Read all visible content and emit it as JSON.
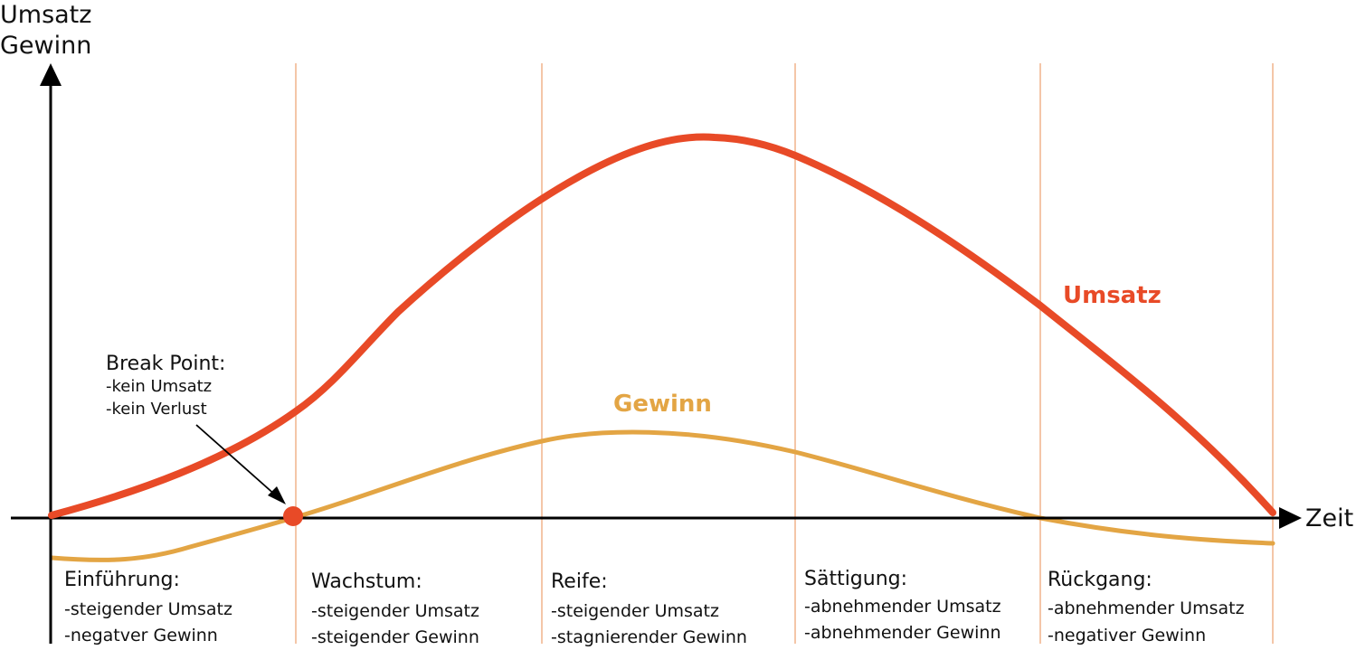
{
  "colors": {
    "umsatz": "#e84a27",
    "gewinn": "#e3a544",
    "divider": "#f0b48c",
    "axis": "#000000",
    "break_point": "#e84a27"
  },
  "y_axis_title": [
    "Umsatz",
    "Gewinn"
  ],
  "x_axis_title": "Zeit",
  "break_point": {
    "title": "Break Point:",
    "lines": [
      "-kein Umsatz",
      "-kein Verlust"
    ]
  },
  "phases": [
    {
      "title": "Einführung:",
      "lines": [
        "-steigender Umsatz",
        "-negatver Gewinn"
      ]
    },
    {
      "title": "Wachstum:",
      "lines": [
        "-steigender Umsatz",
        "-steigender Gewinn"
      ]
    },
    {
      "title": "Reife:",
      "lines": [
        "-steigender Umsatz",
        "-stagnierender Gewinn"
      ]
    },
    {
      "title": "Sättigung:",
      "lines": [
        "-abnehmender Umsatz",
        "-abnehmender Gewinn"
      ]
    },
    {
      "title": "Rückgang:",
      "lines": [
        "-abnehmender Umsatz",
        "-negativer Gewinn"
      ]
    }
  ],
  "chart_data": {
    "type": "line",
    "series": [
      {
        "name": "Umsatz",
        "color": "#e84a27"
      },
      {
        "name": "Gewinn",
        "color": "#e3a544"
      }
    ]
  }
}
